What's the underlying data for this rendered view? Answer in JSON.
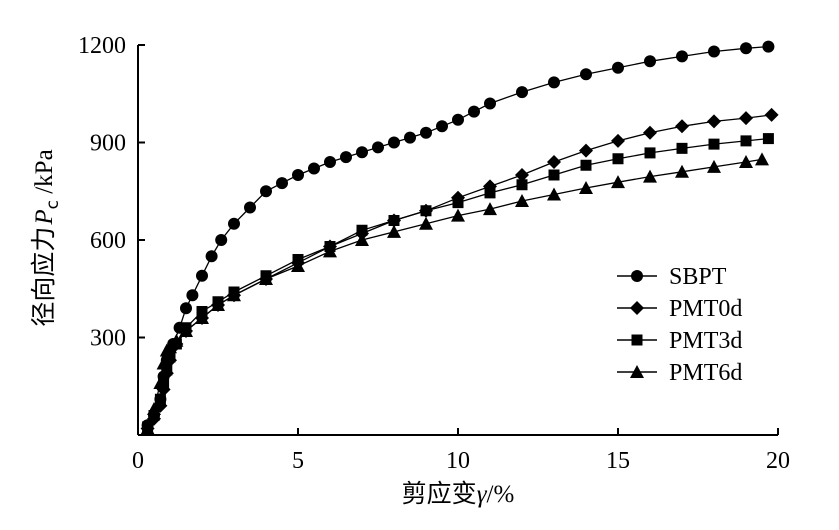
{
  "chart_data": {
    "type": "line",
    "xlabel": {
      "main": "剪应变",
      "symbol": "γ",
      "unit": "/%"
    },
    "ylabel": {
      "main": "径向应力",
      "symbol": "P",
      "subscript": "c",
      "unit": " /kPa"
    },
    "xlim": [
      0,
      20
    ],
    "ylim": [
      0,
      1200
    ],
    "xticks": [
      0,
      5,
      10,
      15,
      20
    ],
    "yticks": [
      300,
      600,
      900,
      1200
    ],
    "x_tick_labels": [
      "0",
      "5",
      "10",
      "15",
      "20"
    ],
    "y_tick_labels": [
      "300",
      "600",
      "900",
      "1200"
    ],
    "grid": false,
    "legend_position": "right-middle",
    "series": [
      {
        "name": "SBPT",
        "marker": "circle",
        "x": [
          0.3,
          0.5,
          0.7,
          0.8,
          0.9,
          1.0,
          1.1,
          1.3,
          1.5,
          1.7,
          2.0,
          2.3,
          2.6,
          3.0,
          3.5,
          4.0,
          4.5,
          5.0,
          5.5,
          6.0,
          6.5,
          7.0,
          7.5,
          8.0,
          8.5,
          9.0,
          9.5,
          10.0,
          10.5,
          11.0,
          12.0,
          13.0,
          14.0,
          15.0,
          16.0,
          17.0,
          18.0,
          19.0,
          19.7
        ],
        "y": [
          30,
          60,
          110,
          180,
          230,
          260,
          280,
          330,
          390,
          430,
          490,
          550,
          600,
          650,
          700,
          750,
          775,
          800,
          820,
          840,
          855,
          870,
          885,
          900,
          915,
          930,
          950,
          970,
          995,
          1020,
          1055,
          1085,
          1110,
          1130,
          1150,
          1165,
          1180,
          1190,
          1195
        ]
      },
      {
        "name": "PMT0d",
        "marker": "diamond",
        "x": [
          0.3,
          0.5,
          0.7,
          0.8,
          0.9,
          1.0,
          1.2,
          1.5,
          2.0,
          2.5,
          3.0,
          4.0,
          5.0,
          6.0,
          7.0,
          8.0,
          9.0,
          10.0,
          11.0,
          12.0,
          13.0,
          14.0,
          15.0,
          16.0,
          17.0,
          18.0,
          19.0,
          19.8
        ],
        "y": [
          20,
          50,
          90,
          140,
          190,
          230,
          280,
          320,
          360,
          400,
          430,
          480,
          530,
          580,
          620,
          660,
          690,
          730,
          765,
          800,
          840,
          875,
          905,
          930,
          950,
          965,
          975,
          985
        ]
      },
      {
        "name": "PMT3d",
        "marker": "square",
        "x": [
          0.3,
          0.5,
          0.7,
          0.8,
          0.9,
          1.0,
          1.2,
          1.5,
          2.0,
          2.5,
          3.0,
          4.0,
          5.0,
          6.0,
          7.0,
          8.0,
          9.0,
          10.0,
          11.0,
          12.0,
          13.0,
          14.0,
          15.0,
          16.0,
          17.0,
          18.0,
          19.0,
          19.7
        ],
        "y": [
          25,
          60,
          110,
          160,
          200,
          240,
          280,
          330,
          380,
          410,
          440,
          490,
          540,
          580,
          630,
          660,
          690,
          715,
          745,
          770,
          800,
          830,
          850,
          868,
          882,
          895,
          905,
          912
        ]
      },
      {
        "name": "PMT6d",
        "marker": "triangle",
        "x": [
          0.3,
          0.5,
          0.7,
          0.8,
          0.9,
          1.0,
          1.2,
          1.5,
          2.0,
          2.5,
          3.0,
          4.0,
          5.0,
          6.0,
          7.0,
          8.0,
          9.0,
          10.0,
          11.0,
          12.0,
          13.0,
          14.0,
          15.0,
          16.0,
          17.0,
          18.0,
          19.0,
          19.5
        ],
        "y": [
          20,
          80,
          160,
          220,
          260,
          270,
          290,
          320,
          360,
          400,
          430,
          480,
          520,
          565,
          600,
          625,
          650,
          675,
          695,
          720,
          740,
          760,
          778,
          795,
          810,
          825,
          840,
          848
        ]
      }
    ]
  }
}
